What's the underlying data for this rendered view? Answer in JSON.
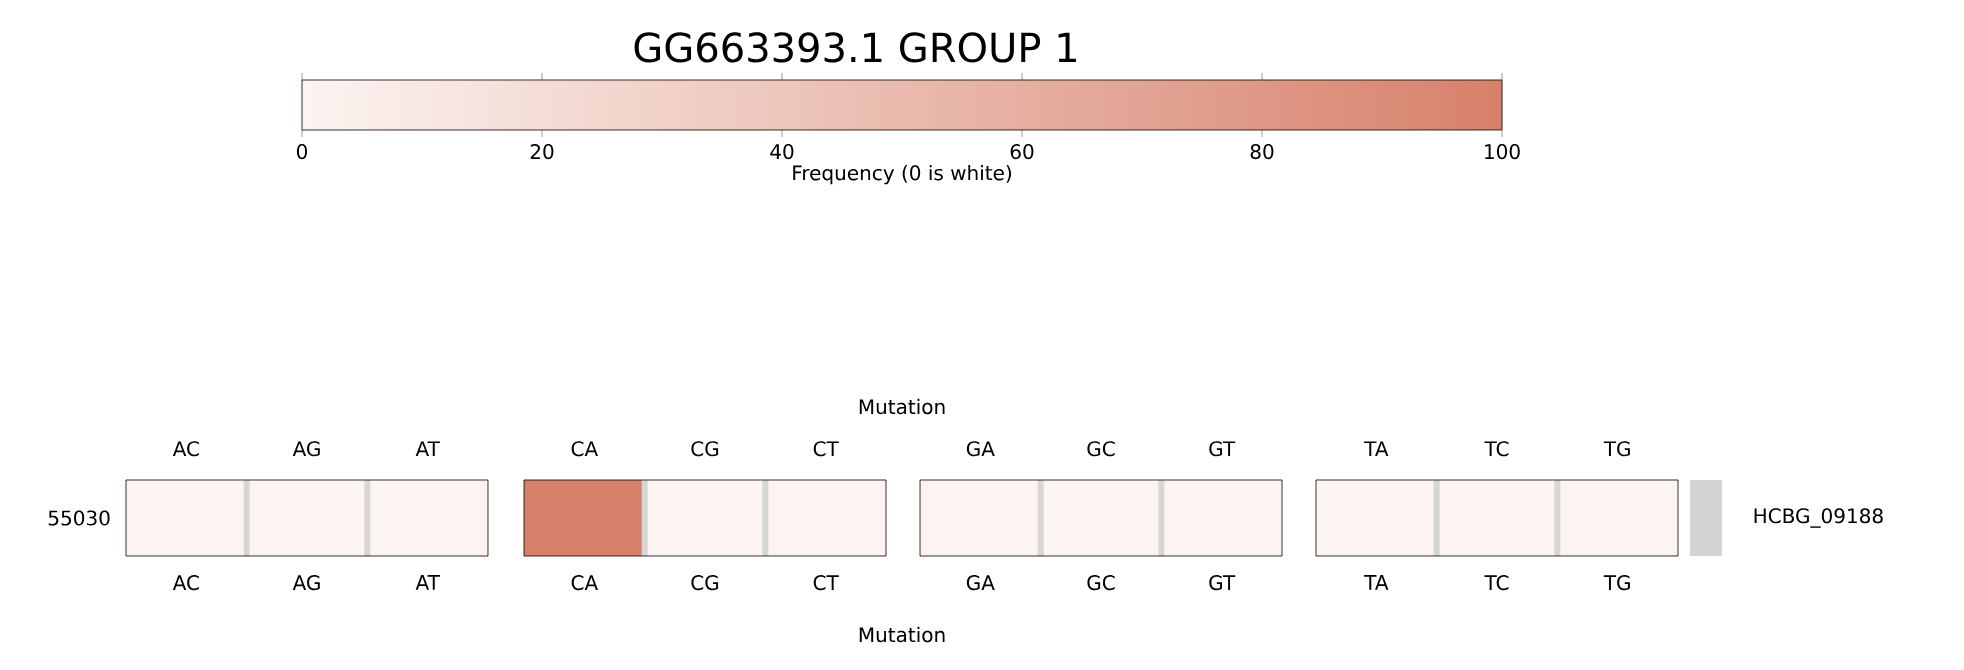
{
  "chart_data": {
    "type": "heatmap",
    "title": "GG663393.1 GROUP 1",
    "clabel": "Frequency (0 is white)",
    "clim": [
      0,
      100
    ],
    "cticks": [
      0,
      20,
      40,
      60,
      80,
      100
    ],
    "xlabel": "Mutation",
    "x2label": "Mutation",
    "categories": [
      "AC",
      "AG",
      "AT",
      "CA",
      "CG",
      "CT",
      "GA",
      "GC",
      "GT",
      "TA",
      "TC",
      "TG"
    ],
    "y_categories": [
      "55030"
    ],
    "y2_categories": [
      "HCBG_09188"
    ],
    "cells": [
      [
        0,
        0,
        0,
        100,
        0,
        0,
        0,
        0,
        0,
        0,
        0,
        0
      ]
    ]
  }
}
